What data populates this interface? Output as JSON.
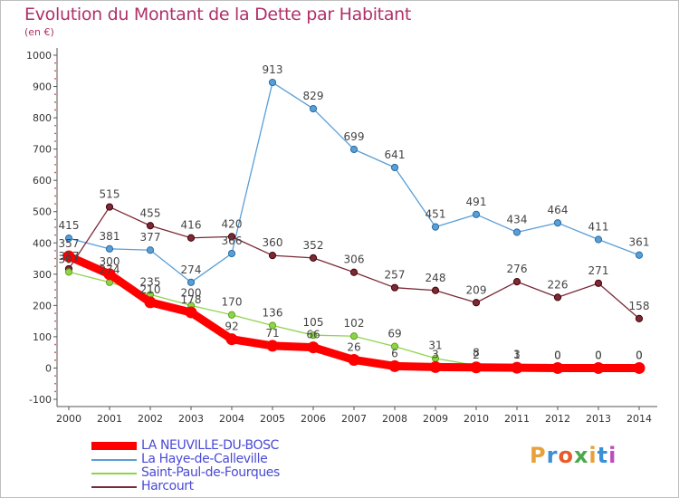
{
  "title": "Evolution du Montant de la Dette par Habitant",
  "subtitle": "(en €)",
  "logo": {
    "text": "Proxiti",
    "colors": [
      "#e8a13a",
      "#3a8fd8",
      "#e85a2a",
      "#4aa84a",
      "#e8a13a",
      "#3a8fd8",
      "#c04ac0"
    ]
  },
  "chart_data": {
    "type": "line",
    "x": [
      "2000",
      "2001",
      "2002",
      "2003",
      "2004",
      "2005",
      "2006",
      "2007",
      "2008",
      "2009",
      "2010",
      "2011",
      "2012",
      "2013",
      "2014"
    ],
    "ylim": [
      -100,
      1000
    ],
    "yticks": [
      -100,
      0,
      100,
      200,
      300,
      400,
      500,
      600,
      700,
      800,
      900,
      1000
    ],
    "grid": false,
    "legend_position": "bottom-left",
    "series": [
      {
        "name": "La Haye-de-Calleville",
        "color": "#5a9ed6",
        "values": [
          415,
          381,
          377,
          274,
          366,
          913,
          829,
          699,
          641,
          451,
          491,
          434,
          464,
          411,
          361
        ],
        "labels": [
          "415",
          "381",
          "377",
          "274",
          "366",
          "913",
          "829",
          "699",
          "641",
          "451",
          "491",
          "434",
          "464",
          "411",
          "361"
        ]
      },
      {
        "name": "Harcourt",
        "color": "#7a2a36",
        "values": [
          317,
          515,
          455,
          416,
          420,
          360,
          352,
          306,
          257,
          248,
          209,
          276,
          226,
          271,
          158
        ],
        "labels": [
          "317",
          "515",
          "455",
          "416",
          "420",
          "360",
          "352",
          "306",
          "257",
          "248",
          "209",
          "276",
          "226",
          "271",
          "158"
        ]
      },
      {
        "name": "Saint-Paul-de-Fourques",
        "color": "#8ed44a",
        "values": [
          307,
          274,
          235,
          200,
          170,
          136,
          105,
          102,
          69,
          31,
          8,
          3,
          0,
          0,
          0
        ],
        "labels": [
          "307",
          "274",
          "235",
          "200",
          "170",
          "136",
          "105",
          "102",
          "69",
          "31",
          "8",
          "3",
          "0",
          "0",
          "0"
        ]
      },
      {
        "name": "LA NEUVILLE-DU-BOSC",
        "color": "#ff0000",
        "values": [
          357,
          300,
          210,
          178,
          92,
          71,
          66,
          26,
          6,
          3,
          2,
          1,
          0,
          0,
          0
        ],
        "labels": [
          "357",
          "300",
          "210",
          "178",
          "92",
          "71",
          "66",
          "26",
          "6",
          "3",
          "2",
          "1",
          "0",
          "0",
          "0"
        ]
      }
    ],
    "legend_order": [
      "LA NEUVILLE-DU-BOSC",
      "La Haye-de-Calleville",
      "Saint-Paul-de-Fourques",
      "Harcourt"
    ]
  }
}
